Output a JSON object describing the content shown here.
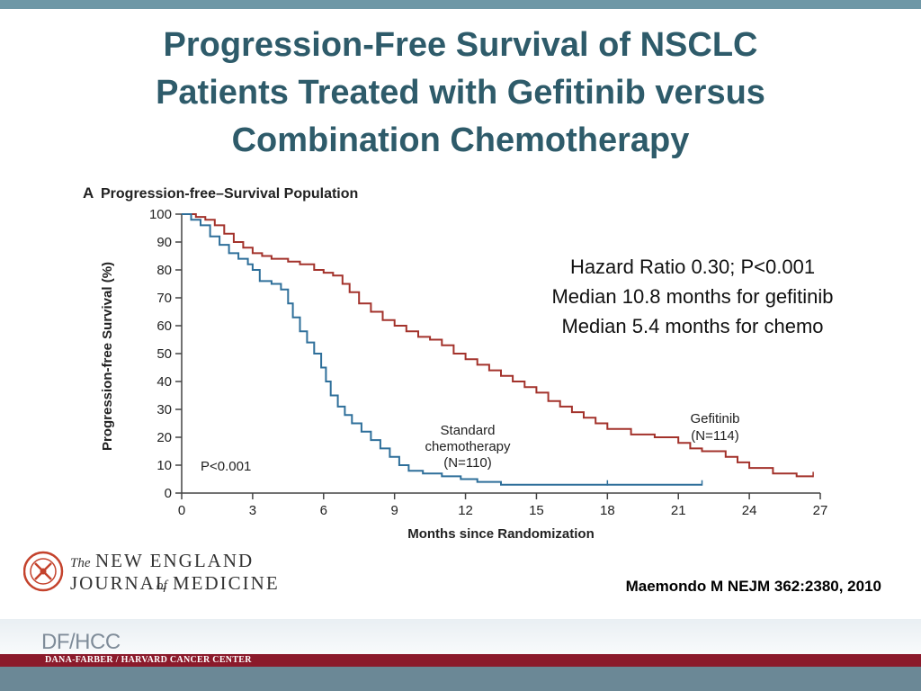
{
  "slide": {
    "title_lines": [
      "Progression-Free Survival of NSCLC",
      "Patients Treated with Gefitinib versus",
      "Combination Chemotherapy"
    ],
    "stats_lines": [
      "Hazard Ratio 0.30; P<0.001",
      "Median 10.8 months for gefitinib",
      "Median 5.4 months for chemo"
    ],
    "citation": "Maemondo M NEJM 362:2380, 2010",
    "journal": {
      "line1_prefix": "The",
      "line1": "NEW ENGLAND",
      "line2_a": "JOURNAL",
      "line2_of": "of",
      "line2_b": "MEDICINE"
    },
    "footer": {
      "logo_text": "DF/HCC",
      "org": "DANA-FARBER / HARVARD CANCER CENTER"
    }
  },
  "chart_data": {
    "type": "line",
    "panel_label": "A",
    "title": "Progression-free–Survival Population",
    "xlabel": "Months since Randomization",
    "ylabel": "Progression-free Survival (%)",
    "xlim": [
      0,
      27
    ],
    "ylim": [
      0,
      100
    ],
    "xticks": [
      0,
      3,
      6,
      9,
      12,
      15,
      18,
      21,
      24,
      27
    ],
    "yticks": [
      0,
      10,
      20,
      30,
      40,
      50,
      60,
      70,
      80,
      90,
      100
    ],
    "annotation": "P<0.001",
    "series": [
      {
        "name": "Gefitinib",
        "n_label": "(N=114)",
        "color": "#a3322b",
        "points": [
          [
            0,
            100
          ],
          [
            0.6,
            99
          ],
          [
            1,
            98
          ],
          [
            1.4,
            96
          ],
          [
            1.8,
            93
          ],
          [
            2.2,
            90
          ],
          [
            2.6,
            88
          ],
          [
            3,
            86
          ],
          [
            3.4,
            85
          ],
          [
            3.8,
            84
          ],
          [
            4.5,
            83
          ],
          [
            5,
            82
          ],
          [
            5.6,
            80
          ],
          [
            6,
            79
          ],
          [
            6.4,
            78
          ],
          [
            6.8,
            75
          ],
          [
            7.1,
            72
          ],
          [
            7.5,
            68
          ],
          [
            8,
            65
          ],
          [
            8.5,
            62
          ],
          [
            9,
            60
          ],
          [
            9.5,
            58
          ],
          [
            10,
            56
          ],
          [
            10.5,
            55
          ],
          [
            11,
            53
          ],
          [
            11.5,
            50
          ],
          [
            12,
            48
          ],
          [
            12.5,
            46
          ],
          [
            13,
            44
          ],
          [
            13.5,
            42
          ],
          [
            14,
            40
          ],
          [
            14.5,
            38
          ],
          [
            15,
            36
          ],
          [
            15.5,
            33
          ],
          [
            16,
            31
          ],
          [
            16.5,
            29
          ],
          [
            17,
            27
          ],
          [
            17.5,
            25
          ],
          [
            18,
            23
          ],
          [
            19,
            21
          ],
          [
            20,
            20
          ],
          [
            21,
            18
          ],
          [
            21.5,
            16
          ],
          [
            22,
            15
          ],
          [
            23,
            13
          ],
          [
            23.5,
            11
          ],
          [
            24,
            9
          ],
          [
            25,
            7
          ],
          [
            26,
            6
          ],
          [
            26.7,
            6
          ]
        ],
        "censor": [
          26.7
        ]
      },
      {
        "name": "Standard chemotherapy",
        "label_lines": [
          "Standard",
          "chemotherapy",
          "(N=110)"
        ],
        "color": "#2e6f9a",
        "points": [
          [
            0,
            100
          ],
          [
            0.4,
            98
          ],
          [
            0.8,
            96
          ],
          [
            1.2,
            92
          ],
          [
            1.6,
            89
          ],
          [
            2,
            86
          ],
          [
            2.4,
            84
          ],
          [
            2.8,
            82
          ],
          [
            3,
            80
          ],
          [
            3.3,
            76
          ],
          [
            3.8,
            75
          ],
          [
            4.2,
            73
          ],
          [
            4.5,
            68
          ],
          [
            4.7,
            63
          ],
          [
            5,
            58
          ],
          [
            5.3,
            54
          ],
          [
            5.6,
            50
          ],
          [
            5.9,
            45
          ],
          [
            6.1,
            40
          ],
          [
            6.3,
            35
          ],
          [
            6.6,
            31
          ],
          [
            6.9,
            28
          ],
          [
            7.2,
            25
          ],
          [
            7.6,
            22
          ],
          [
            8,
            19
          ],
          [
            8.4,
            16
          ],
          [
            8.8,
            13
          ],
          [
            9.2,
            10
          ],
          [
            9.6,
            8
          ],
          [
            10.2,
            7
          ],
          [
            11,
            6
          ],
          [
            11.8,
            5
          ],
          [
            12.5,
            4
          ],
          [
            13.5,
            3
          ],
          [
            15,
            3
          ],
          [
            18,
            3
          ],
          [
            20,
            3
          ],
          [
            22,
            3
          ]
        ],
        "censor": [
          18,
          22
        ]
      }
    ]
  }
}
